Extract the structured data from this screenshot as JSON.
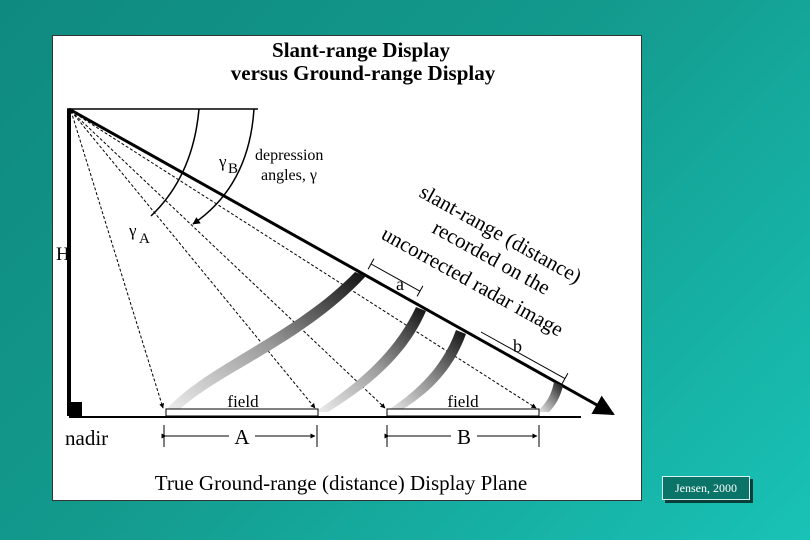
{
  "title": {
    "line1": "Slant-range Display",
    "line2": "versus Ground-range Display"
  },
  "labels": {
    "height": "H",
    "nadir": "nadir",
    "gamma_b": "γ",
    "gamma_b_sub": "B",
    "gamma_a": "γ",
    "gamma_a_sub": "A",
    "depression_line1": "depression",
    "depression_line2": "angles, γ",
    "slant_line1": "slant-range (distance)",
    "slant_line2": "recorded on the",
    "slant_line3": "uncorrected radar image",
    "slant_a": "a",
    "slant_b": "b",
    "field_1": "field",
    "field_2": "field",
    "ground_a": "A",
    "ground_b": "B",
    "ground_plane": "True Ground-range (distance) Display Plane"
  },
  "credit": "Jensen, 2000",
  "colors": {
    "background_start": "#0f8a80",
    "background_end": "#19c2b6",
    "frame": "#ffffff",
    "ink": "#000000"
  }
}
